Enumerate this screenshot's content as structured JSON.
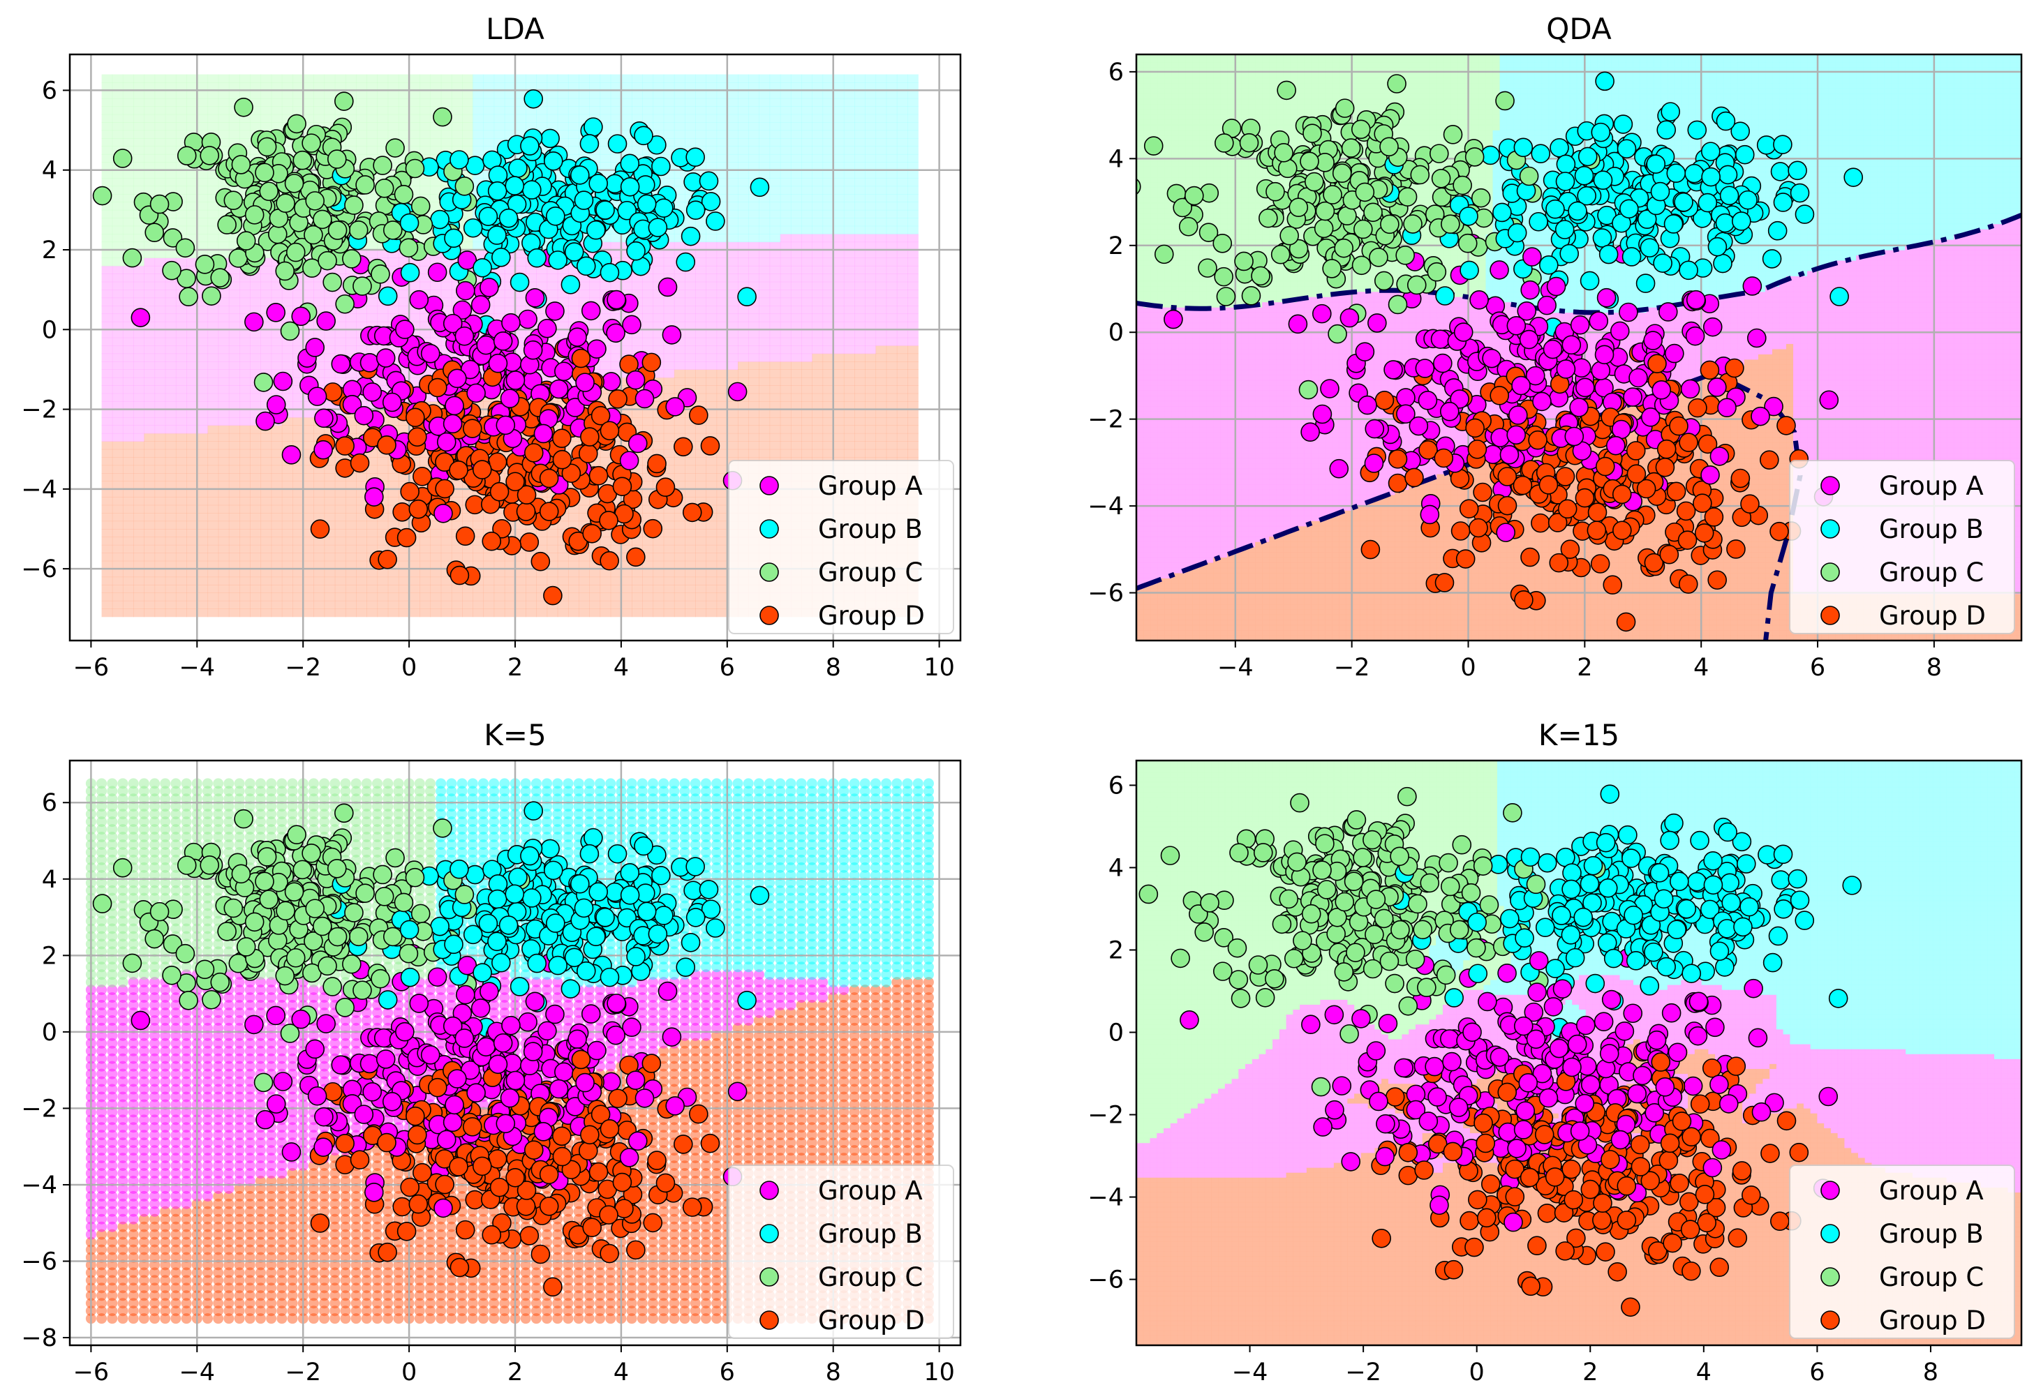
{
  "colors": {
    "A": "#ff00ff",
    "B": "#00ffff",
    "C": "#90ee90",
    "D": "#ff4500",
    "A_bg": "#ffaaff",
    "B_bg": "#aaffff",
    "C_bg": "#ccffcc",
    "D_bg": "#ffb597",
    "boundary": "#000066",
    "grid": "#b0b0b0"
  },
  "chart_data": [
    {
      "type": "scatter",
      "title": "LDA",
      "xlim": [
        -6.4,
        10.4
      ],
      "ylim": [
        -7.8,
        6.9
      ],
      "xticks": [
        -6,
        -4,
        -2,
        0,
        2,
        4,
        6,
        8,
        10
      ],
      "yticks": [
        -6,
        -4,
        -2,
        0,
        2,
        4,
        6
      ],
      "grid": true,
      "legend": {
        "placement": "lower-right",
        "entries": [
          "Group A",
          "Group B",
          "Group C",
          "Group D"
        ]
      },
      "background": "soft-dots"
    },
    {
      "type": "scatter",
      "title": "QDA",
      "xlim": [
        -5.7,
        9.5
      ],
      "ylim": [
        -7.1,
        6.4
      ],
      "xticks": [
        -4,
        -2,
        0,
        2,
        4,
        6,
        8
      ],
      "yticks": [
        -6,
        -4,
        -2,
        0,
        2,
        4,
        6
      ],
      "grid": true,
      "legend": {
        "placement": "lower-right",
        "entries": [
          "Group A",
          "Group B",
          "Group C",
          "Group D"
        ]
      },
      "background": "filled",
      "decision_boundaries": "dash-dot"
    },
    {
      "type": "scatter",
      "title": "K=5",
      "xlim": [
        -6.4,
        10.4
      ],
      "ylim": [
        -8.2,
        7.1
      ],
      "xticks": [
        -6,
        -4,
        -2,
        0,
        2,
        4,
        6,
        8,
        10
      ],
      "yticks": [
        -8,
        -6,
        -4,
        -2,
        0,
        2,
        4,
        6
      ],
      "grid": true,
      "legend": {
        "placement": "lower-right",
        "entries": [
          "Group A",
          "Group B",
          "Group C",
          "Group D"
        ]
      },
      "background": "dot-grid"
    },
    {
      "type": "scatter",
      "title": "K=15",
      "xlim": [
        -6.0,
        9.6
      ],
      "ylim": [
        -7.6,
        6.6
      ],
      "xticks": [
        -4,
        -2,
        0,
        2,
        4,
        6,
        8
      ],
      "yticks": [
        -6,
        -4,
        -2,
        0,
        2,
        4,
        6
      ],
      "grid": false,
      "legend": {
        "placement": "lower-right",
        "entries": [
          "Group A",
          "Group B",
          "Group C",
          "Group D"
        ]
      },
      "background": "filled"
    }
  ],
  "groups": [
    {
      "key": "A",
      "name": "Group A",
      "center": [
        1.2,
        -1.2
      ],
      "spread": [
        1.8,
        1.3
      ],
      "count": 240
    },
    {
      "key": "B",
      "name": "Group B",
      "center": [
        3.0,
        3.0
      ],
      "spread": [
        1.5,
        0.85
      ],
      "count": 240
    },
    {
      "key": "C",
      "name": "Group C",
      "center": [
        -2.0,
        3.1
      ],
      "spread": [
        1.3,
        1.1
      ],
      "count": 240
    },
    {
      "key": "D",
      "name": "Group D",
      "center": [
        1.9,
        -3.4
      ],
      "spread": [
        1.6,
        1.25
      ],
      "count": 240
    }
  ]
}
